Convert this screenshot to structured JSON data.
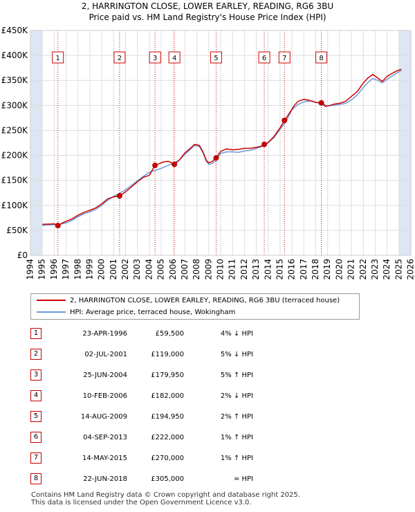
{
  "title_line1": "2, HARRINGTON CLOSE, LOWER EARLEY, READING, RG6 3BU",
  "title_line2": "Price paid vs. HM Land Registry's House Price Index (HPI)",
  "colors": {
    "property": "#cc0000",
    "hpi": "#6a9ad8",
    "grid": "#dddddd",
    "marker_border": "#cc0000",
    "band": "#dde6f3"
  },
  "legend": {
    "property_label": "2, HARRINGTON CLOSE, LOWER EARLEY, READING, RG6 3BU (terraced house)",
    "hpi_label": "HPI: Average price, terraced house, Wokingham"
  },
  "transactions": [
    {
      "num": "1",
      "date": "23-APR-1996",
      "price": "£59,500",
      "hpi": "4% ↓ HPI"
    },
    {
      "num": "2",
      "date": "02-JUL-2001",
      "price": "£119,000",
      "hpi": "5% ↓ HPI"
    },
    {
      "num": "3",
      "date": "25-JUN-2004",
      "price": "£179,950",
      "hpi": "5% ↑ HPI"
    },
    {
      "num": "4",
      "date": "10-FEB-2006",
      "price": "£182,000",
      "hpi": "2% ↓ HPI"
    },
    {
      "num": "5",
      "date": "14-AUG-2009",
      "price": "£194,950",
      "hpi": "2% ↑ HPI"
    },
    {
      "num": "6",
      "date": "04-SEP-2013",
      "price": "£222,000",
      "hpi": "1% ↑ HPI"
    },
    {
      "num": "7",
      "date": "14-MAY-2015",
      "price": "£270,000",
      "hpi": "1% ↑ HPI"
    },
    {
      "num": "8",
      "date": "22-JUN-2018",
      "price": "£305,000",
      "hpi": "≈ HPI"
    }
  ],
  "footer_line1": "Contains HM Land Registry data © Crown copyright and database right 2025.",
  "footer_line2": "This data is licensed under the Open Government Licence v3.0.",
  "chart_data": {
    "type": "line",
    "title": "2, HARRINGTON CLOSE, LOWER EARLEY, READING, RG6 3BU",
    "subtitle": "Price paid vs. HM Land Registry's House Price Index (HPI)",
    "xlabel": "",
    "ylabel": "",
    "xlim": [
      1994,
      2026
    ],
    "ylim": [
      0,
      450000
    ],
    "x_ticks": [
      1994,
      1995,
      1996,
      1997,
      1998,
      1999,
      2000,
      2001,
      2002,
      2003,
      2004,
      2005,
      2006,
      2007,
      2008,
      2009,
      2010,
      2011,
      2012,
      2013,
      2014,
      2015,
      2016,
      2017,
      2018,
      2019,
      2020,
      2021,
      2022,
      2023,
      2024,
      2025,
      2026
    ],
    "y_ticks": [
      {
        "value": 0,
        "label": "£0"
      },
      {
        "value": 50000,
        "label": "£50K"
      },
      {
        "value": 100000,
        "label": "£100K"
      },
      {
        "value": 150000,
        "label": "£150K"
      },
      {
        "value": 200000,
        "label": "£200K"
      },
      {
        "value": 250000,
        "label": "£250K"
      },
      {
        "value": 300000,
        "label": "£300K"
      },
      {
        "value": 350000,
        "label": "£350K"
      },
      {
        "value": 400000,
        "label": "£400K"
      },
      {
        "value": 450000,
        "label": "£450K"
      }
    ],
    "grid": true,
    "legend_position": "bottom",
    "shaded_ranges": [
      [
        1994,
        1995
      ],
      [
        2025,
        2026
      ]
    ],
    "series": [
      {
        "name": "2, HARRINGTON CLOSE, LOWER EARLEY, READING, RG6 3BU (terraced house)",
        "x": [
          1995.0,
          1995.5,
          1996.0,
          1996.31,
          1996.8,
          1997.5,
          1998.0,
          1998.5,
          1999.0,
          1999.5,
          2000.0,
          2000.5,
          2001.0,
          2001.5,
          2002.0,
          2002.5,
          2003.0,
          2003.5,
          2004.0,
          2004.48,
          2004.8,
          2005.2,
          2005.6,
          2005.9,
          2006.11,
          2006.5,
          2007.0,
          2007.5,
          2007.8,
          2008.2,
          2008.5,
          2008.8,
          2009.0,
          2009.3,
          2009.62,
          2010.0,
          2010.5,
          2011.0,
          2011.5,
          2012.0,
          2012.5,
          2013.0,
          2013.5,
          2013.67,
          2014.0,
          2014.5,
          2015.0,
          2015.37,
          2015.8,
          2016.2,
          2016.5,
          2017.0,
          2017.5,
          2018.0,
          2018.47,
          2018.8,
          2019.2,
          2019.6,
          2020.0,
          2020.5,
          2021.0,
          2021.5,
          2022.0,
          2022.4,
          2022.8,
          2023.2,
          2023.6,
          2024.0,
          2024.5,
          2024.9,
          2025.2
        ],
        "y": [
          62000,
          62500,
          63000,
          59500,
          66000,
          73000,
          80000,
          86000,
          90000,
          95000,
          103000,
          113000,
          117000,
          119000,
          127000,
          137000,
          147000,
          156000,
          160000,
          179950,
          183000,
          187000,
          188000,
          185000,
          182000,
          190000,
          205000,
          215000,
          222000,
          220000,
          208000,
          190000,
          185000,
          188000,
          194950,
          208000,
          213000,
          211000,
          212000,
          214000,
          214000,
          216000,
          219000,
          222000,
          226000,
          238000,
          255000,
          270000,
          285000,
          300000,
          308000,
          312000,
          310000,
          306000,
          305000,
          298000,
          300000,
          303000,
          304000,
          308000,
          318000,
          328000,
          345000,
          355000,
          362000,
          355000,
          348000,
          358000,
          365000,
          370000,
          372000
        ]
      },
      {
        "name": "HPI: Average price, terraced house, Wokingham",
        "x": [
          1995.0,
          1995.5,
          1996.0,
          1996.5,
          1997.0,
          1997.5,
          1998.0,
          1998.5,
          1999.0,
          1999.5,
          2000.0,
          2000.5,
          2001.0,
          2001.5,
          2002.0,
          2002.5,
          2003.0,
          2003.5,
          2004.0,
          2004.5,
          2005.0,
          2005.5,
          2006.0,
          2006.5,
          2007.0,
          2007.5,
          2007.8,
          2008.2,
          2008.5,
          2008.8,
          2009.0,
          2009.3,
          2009.6,
          2010.0,
          2010.5,
          2011.0,
          2011.5,
          2012.0,
          2012.5,
          2013.0,
          2013.5,
          2014.0,
          2014.5,
          2015.0,
          2015.5,
          2016.0,
          2016.5,
          2017.0,
          2017.5,
          2018.0,
          2018.5,
          2019.0,
          2019.5,
          2020.0,
          2020.5,
          2021.0,
          2021.5,
          2022.0,
          2022.4,
          2022.8,
          2023.2,
          2023.6,
          2024.0,
          2024.5,
          2024.9,
          2025.2
        ],
        "y": [
          60000,
          60500,
          61500,
          62000,
          65000,
          70000,
          77000,
          83000,
          87000,
          92000,
          100000,
          110000,
          118000,
          124000,
          131000,
          140000,
          149000,
          158000,
          166000,
          170000,
          174000,
          179000,
          184000,
          190000,
          202000,
          213000,
          220000,
          218000,
          206000,
          188000,
          182000,
          184000,
          189000,
          204000,
          207000,
          207000,
          206000,
          209000,
          210000,
          214000,
          218000,
          225000,
          236000,
          252000,
          268000,
          291000,
          302000,
          307000,
          309000,
          306000,
          304000,
          299000,
          300000,
          302000,
          304000,
          311000,
          321000,
          336000,
          346000,
          354000,
          350000,
          345000,
          352000,
          360000,
          366000,
          370000
        ]
      }
    ],
    "annotations": [
      {
        "label": "1",
        "x": 1996.31,
        "y": 59500
      },
      {
        "label": "2",
        "x": 2001.5,
        "y": 119000
      },
      {
        "label": "3",
        "x": 2004.48,
        "y": 179950
      },
      {
        "label": "4",
        "x": 2006.11,
        "y": 182000
      },
      {
        "label": "5",
        "x": 2009.62,
        "y": 194950
      },
      {
        "label": "6",
        "x": 2013.67,
        "y": 222000
      },
      {
        "label": "7",
        "x": 2015.37,
        "y": 270000
      },
      {
        "label": "8",
        "x": 2018.47,
        "y": 305000
      }
    ]
  }
}
